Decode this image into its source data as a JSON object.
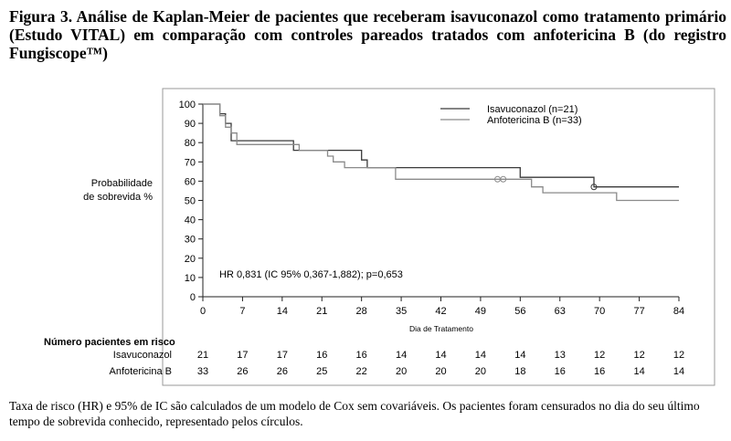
{
  "caption": {
    "title": "Figura 3. Análise de Kaplan-Meier de pacientes que receberam isavuconazol como tratamento primário (Estudo VITAL) em comparação com controles pareados tratados com anfotericina B (do registro Fungiscope™)"
  },
  "chart_data": {
    "type": "line",
    "step": true,
    "xlabel": "Dia de Tratamento",
    "ylabel_line1": "Probabilidade",
    "ylabel_line2": "de sobrevida %",
    "xlim": [
      0,
      84
    ],
    "ylim": [
      0,
      100
    ],
    "xticks": [
      0,
      7,
      14,
      21,
      28,
      35,
      42,
      49,
      56,
      63,
      70,
      77,
      84
    ],
    "yticks": [
      0,
      10,
      20,
      30,
      40,
      50,
      60,
      70,
      80,
      90,
      100
    ],
    "grid": false,
    "legend_position": "top-right",
    "annotation": "HR 0,831 (IC 95% 0,367-1,882); p=0,653",
    "series": [
      {
        "name": "Isavuconazol (n=21)",
        "color": "#3a3a3a",
        "points": [
          [
            0,
            100
          ],
          [
            3,
            100
          ],
          [
            3,
            95
          ],
          [
            4,
            95
          ],
          [
            4,
            90
          ],
          [
            5,
            90
          ],
          [
            5,
            81
          ],
          [
            6,
            81
          ],
          [
            6,
            81
          ],
          [
            16,
            81
          ],
          [
            16,
            76
          ],
          [
            28,
            76
          ],
          [
            28,
            71
          ],
          [
            29,
            71
          ],
          [
            29,
            67
          ],
          [
            56,
            67
          ],
          [
            56,
            62
          ],
          [
            69,
            62
          ],
          [
            69,
            57
          ],
          [
            84,
            57
          ]
        ],
        "censored": [
          [
            69,
            57
          ]
        ]
      },
      {
        "name": "Anfotericina B (n=33)",
        "color": "#8a8a8a",
        "points": [
          [
            0,
            100
          ],
          [
            3,
            100
          ],
          [
            3,
            94
          ],
          [
            4,
            94
          ],
          [
            4,
            88
          ],
          [
            5,
            88
          ],
          [
            5,
            85
          ],
          [
            6,
            85
          ],
          [
            6,
            79
          ],
          [
            17,
            79
          ],
          [
            17,
            76
          ],
          [
            22,
            76
          ],
          [
            22,
            73
          ],
          [
            23,
            73
          ],
          [
            23,
            70
          ],
          [
            25,
            70
          ],
          [
            25,
            67
          ],
          [
            34,
            67
          ],
          [
            34,
            61
          ],
          [
            58,
            61
          ],
          [
            58,
            57
          ],
          [
            60,
            57
          ],
          [
            60,
            54
          ],
          [
            73,
            54
          ],
          [
            73,
            50
          ],
          [
            84,
            50
          ]
        ],
        "censored": [
          [
            52,
            61
          ],
          [
            53,
            61
          ]
        ]
      }
    ]
  },
  "risk_table": {
    "title": "Número pacientes em risco",
    "rows": [
      {
        "label": "Isavuconazol",
        "values": [
          "21",
          "17",
          "17",
          "16",
          "16",
          "14",
          "14",
          "14",
          "14",
          "13",
          "12",
          "12",
          "12"
        ]
      },
      {
        "label": "Anfotericina B",
        "values": [
          "33",
          "26",
          "26",
          "25",
          "22",
          "20",
          "20",
          "20",
          "18",
          "16",
          "16",
          "14",
          "14"
        ]
      }
    ]
  },
  "footnote": {
    "text": "Taxa de risco (HR) e 95% de IC são calculados de um modelo de Cox sem covariáveis. Os pacientes foram censurados no dia do seu último tempo de sobrevida conhecido, representado pelos círculos."
  }
}
